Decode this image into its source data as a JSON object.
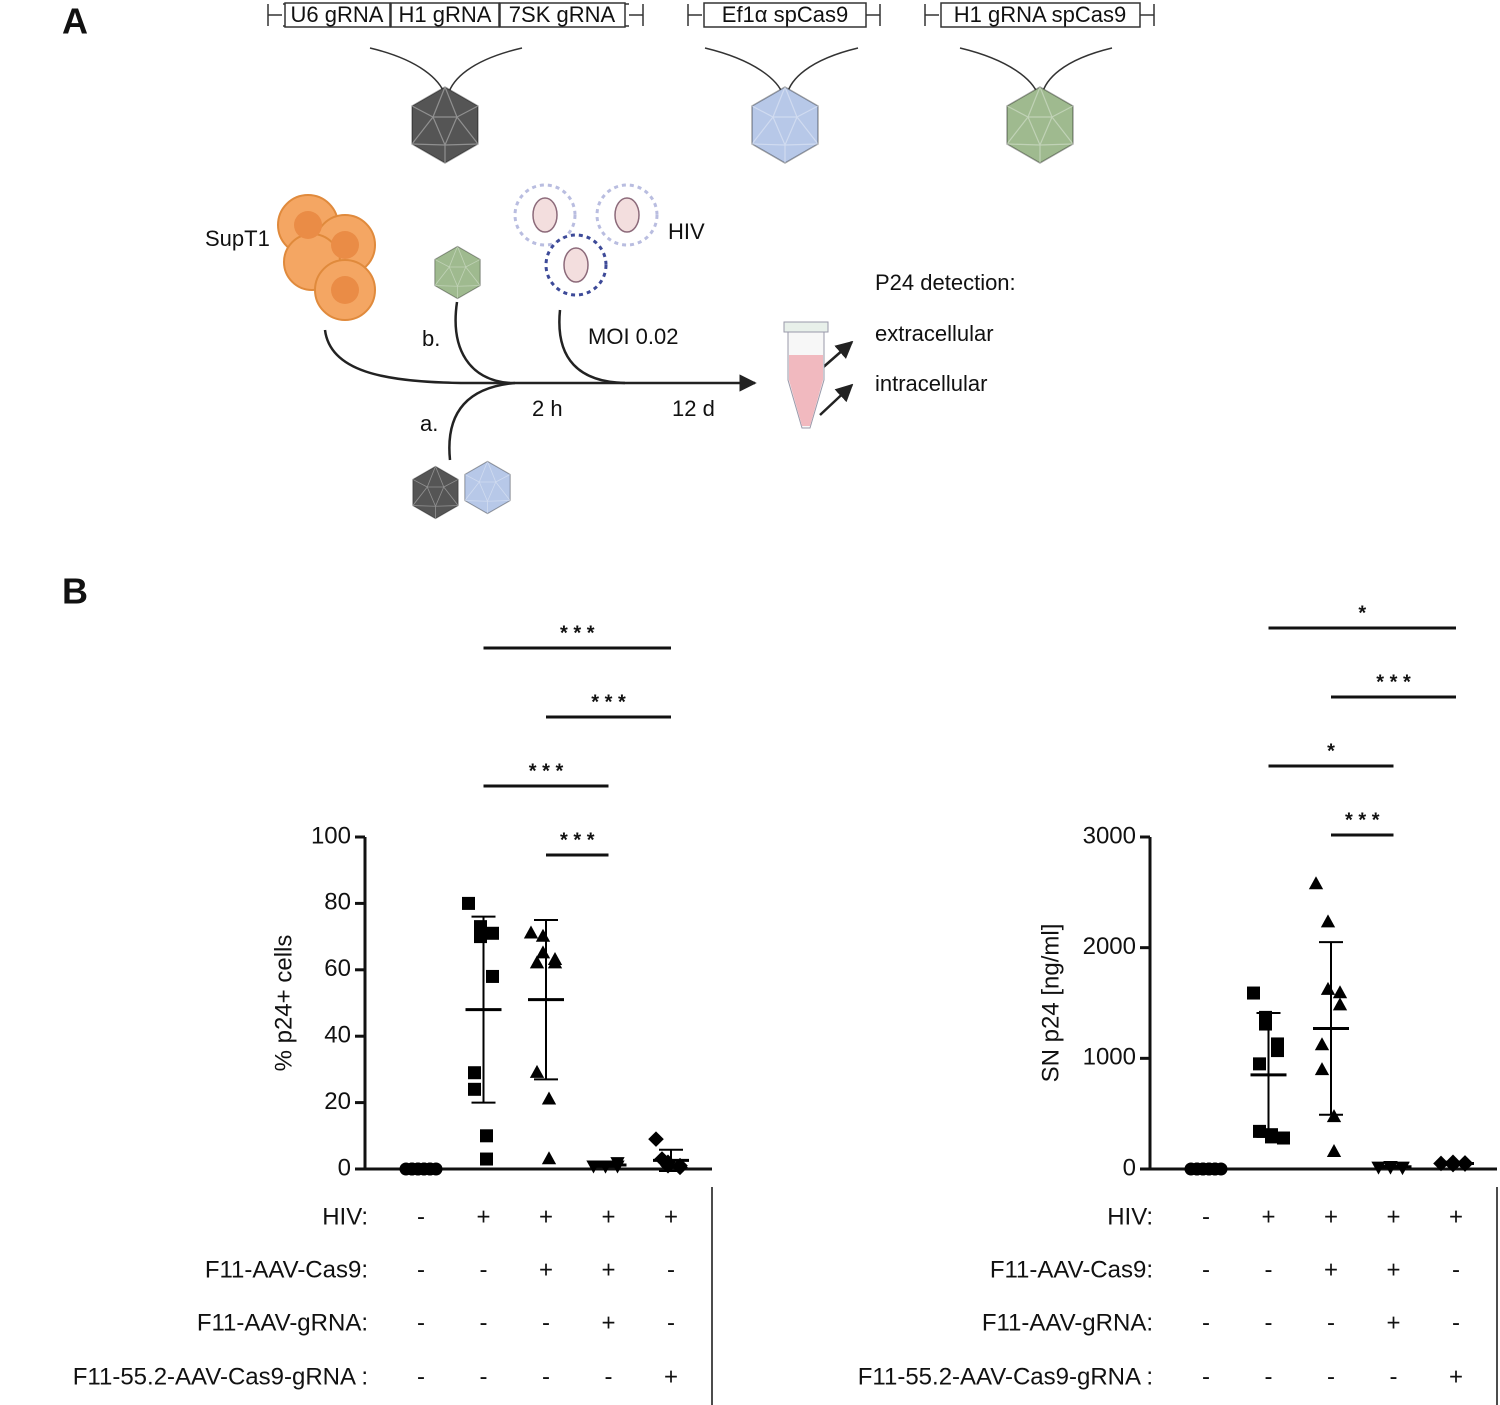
{
  "panel_a": {
    "label": "A",
    "constructs": [
      [
        "U6 gRNA",
        "H1 gRNA",
        "7SK gRNA"
      ],
      [
        "Ef1α spCas9"
      ],
      [
        "H1 gRNA spCas9"
      ]
    ],
    "cell_label": "SupT1",
    "virus_label": "HIV",
    "route_b": "b.",
    "route_a": "a.",
    "moi": "MOI 0.02",
    "time_1": "2 h",
    "time_2": "12 d",
    "detection_title": "P24 detection:",
    "detection_items": [
      "extracellular",
      "intracellular"
    ]
  },
  "panel_b": {
    "label": "B"
  },
  "chart_data": [
    {
      "type": "dotplot",
      "y_label": "% p24+ cells",
      "ylim": [
        0,
        100
      ],
      "yticks": [
        0,
        20,
        40,
        60,
        80,
        100
      ],
      "color": "#000000",
      "groups": [
        {
          "marker": "circle",
          "values": [
            0,
            0,
            0,
            0,
            0,
            0,
            0,
            0,
            0,
            0
          ],
          "mean": 0,
          "sd": 0
        },
        {
          "marker": "square",
          "values": [
            80,
            70,
            73,
            71,
            58,
            29,
            24,
            10,
            3
          ],
          "mean": 48,
          "sd": 28
        },
        {
          "marker": "triangle",
          "values": [
            71,
            70,
            65,
            63,
            62,
            62,
            29,
            21,
            3
          ],
          "mean": 51,
          "sd": 24
        },
        {
          "marker": "triangle-down",
          "values": [
            1,
            1,
            1,
            2,
            1
          ],
          "mean": 1.2,
          "sd": 0.5
        },
        {
          "marker": "diamond",
          "values": [
            9,
            2,
            1,
            1,
            0.5,
            3
          ],
          "mean": 2.6,
          "sd": 3.2
        }
      ],
      "conditions": [
        {
          "label": "HIV:",
          "cells": [
            "-",
            "+",
            "+",
            "+",
            "+"
          ]
        },
        {
          "label": "F11-AAV-Cas9:",
          "cells": [
            "-",
            "-",
            "+",
            "+",
            "-"
          ]
        },
        {
          "label": "F11-AAV-gRNA:",
          "cells": [
            "-",
            "-",
            "-",
            "+",
            "-"
          ]
        },
        {
          "label": "F11-55.2-AAV-Cas9-gRNA :",
          "cells": [
            "-",
            "-",
            "-",
            "-",
            "+"
          ]
        }
      ],
      "significance": [
        {
          "label": "* * *",
          "groups": [
            1,
            4
          ]
        },
        {
          "label": "* * *",
          "groups": [
            2,
            4
          ]
        },
        {
          "label": "* * *",
          "groups": [
            1,
            3
          ]
        },
        {
          "label": "* * *",
          "groups": [
            2,
            3
          ]
        }
      ]
    },
    {
      "type": "dotplot",
      "y_label": "SN p24 [ng/ml]",
      "ylim": [
        0,
        3000
      ],
      "yticks": [
        0,
        1000,
        2000,
        3000
      ],
      "color": "#000000",
      "groups": [
        {
          "marker": "circle",
          "values": [
            0,
            0,
            0,
            0,
            0,
            0,
            0,
            0,
            0,
            0
          ],
          "mean": 0,
          "sd": 0
        },
        {
          "marker": "square",
          "values": [
            1590,
            1370,
            1310,
            1130,
            1070,
            950,
            340,
            310,
            290,
            280
          ],
          "mean": 850,
          "sd": 560
        },
        {
          "marker": "triangle",
          "values": [
            2575,
            2230,
            1620,
            1590,
            1480,
            1120,
            895,
            470,
            155
          ],
          "mean": 1270,
          "sd": 780
        },
        {
          "marker": "triangle-down",
          "values": [
            20,
            25,
            20,
            15,
            20
          ],
          "mean": 20,
          "sd": 10
        },
        {
          "marker": "diamond",
          "values": [
            50,
            60,
            40,
            45,
            55
          ],
          "mean": 50,
          "sd": 15
        }
      ],
      "conditions": [
        {
          "label": "HIV:",
          "cells": [
            "-",
            "+",
            "+",
            "+",
            "+"
          ]
        },
        {
          "label": "F11-AAV-Cas9:",
          "cells": [
            "-",
            "-",
            "+",
            "+",
            "-"
          ]
        },
        {
          "label": "F11-AAV-gRNA:",
          "cells": [
            "-",
            "-",
            "-",
            "+",
            "-"
          ]
        },
        {
          "label": "F11-55.2-AAV-Cas9-gRNA :",
          "cells": [
            "-",
            "-",
            "-",
            "-",
            "+"
          ]
        }
      ],
      "significance": [
        {
          "label": "*",
          "groups": [
            1,
            4
          ]
        },
        {
          "label": "* * *",
          "groups": [
            2,
            4
          ]
        },
        {
          "label": "*",
          "groups": [
            1,
            3
          ]
        },
        {
          "label": "* * *",
          "groups": [
            2,
            3
          ]
        }
      ]
    }
  ]
}
